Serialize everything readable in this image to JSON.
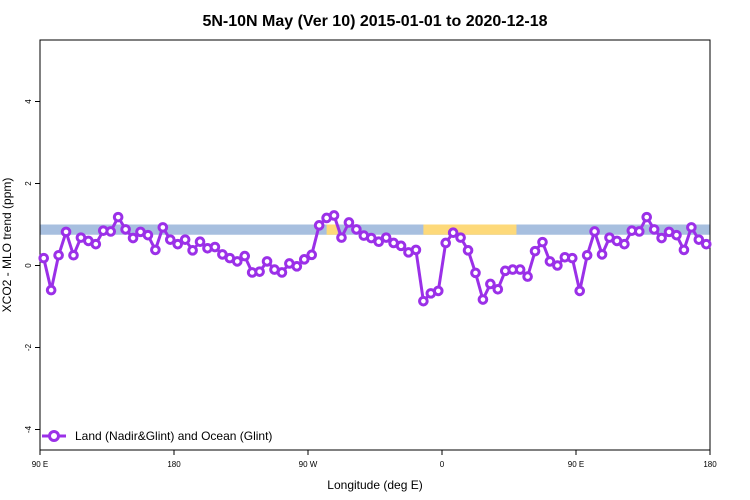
{
  "chart_data": {
    "type": "line",
    "title": "5N-10N May (Ver 10)   2015-01-01 to 2020-12-18",
    "xlabel": "Longitude (deg E)",
    "ylabel": "XCO2 - MLO trend (ppm)",
    "xlim": [
      0,
      360
    ],
    "ylim": [
      -4.5,
      5.5
    ],
    "x_ticks": [
      {
        "value": 0,
        "label": "90 E"
      },
      {
        "value": 72,
        "label": "180"
      },
      {
        "value": 144,
        "label": "90 W"
      },
      {
        "value": 216,
        "label": "0"
      },
      {
        "value": 288,
        "label": "90 E"
      },
      {
        "value": 360,
        "label": "180"
      }
    ],
    "y_ticks": [
      {
        "value": -4,
        "label": "-4"
      },
      {
        "value": -2,
        "label": "-2"
      },
      {
        "value": 0,
        "label": "0"
      },
      {
        "value": 2,
        "label": "2"
      },
      {
        "value": 4,
        "label": "4"
      }
    ],
    "land_mask_band": {
      "y_range": [
        0.75,
        1.0
      ],
      "ocean_color": "#a7bfdf",
      "land_color": "#fdd97a",
      "land_segments": [
        [
          154,
          160
        ],
        [
          206,
          256
        ]
      ]
    },
    "series": [
      {
        "name": "Land (Nadir&Glint) and Ocean (Glint)",
        "color": "#9b30e8",
        "x": [
          2,
          6,
          10,
          14,
          18,
          22,
          26,
          30,
          34,
          38,
          42,
          46,
          50,
          54,
          58,
          62,
          66,
          70,
          74,
          78,
          82,
          86,
          90,
          94,
          98,
          102,
          106,
          110,
          114,
          118,
          122,
          126,
          130,
          134,
          138,
          142,
          146,
          150,
          154,
          158,
          162,
          166,
          170,
          174,
          178,
          182,
          186,
          190,
          194,
          198,
          202,
          206,
          210,
          214,
          218,
          222,
          226,
          230,
          234,
          238,
          242,
          246,
          250,
          254,
          258,
          262,
          266,
          270,
          274,
          278,
          282,
          286,
          290,
          294,
          298,
          302,
          306,
          310,
          314,
          318,
          322,
          326,
          330,
          334,
          338,
          342,
          346,
          350,
          354,
          358
        ],
        "y": [
          0.18,
          -0.6,
          0.25,
          0.82,
          0.25,
          0.68,
          0.6,
          0.52,
          0.85,
          0.83,
          1.18,
          0.88,
          0.67,
          0.82,
          0.74,
          0.38,
          0.93,
          0.63,
          0.52,
          0.63,
          0.37,
          0.58,
          0.42,
          0.45,
          0.27,
          0.18,
          0.1,
          0.23,
          -0.17,
          -0.15,
          0.1,
          -0.1,
          -0.17,
          0.05,
          -0.02,
          0.15,
          0.26,
          0.98,
          1.16,
          1.22,
          0.68,
          1.05,
          0.88,
          0.73,
          0.67,
          0.58,
          0.68,
          0.55,
          0.48,
          0.32,
          0.38,
          -0.87,
          -0.68,
          -0.62,
          0.55,
          0.8,
          0.68,
          0.37,
          -0.18,
          -0.83,
          -0.45,
          -0.58,
          -0.13,
          -0.1,
          -0.1,
          -0.27,
          0.35,
          0.57,
          0.1,
          0.0,
          0.2,
          0.18,
          -0.62,
          0.25,
          0.83,
          0.27,
          0.68,
          0.6,
          0.52,
          0.85,
          0.83,
          1.18,
          0.88,
          0.67,
          0.82,
          0.74,
          0.38,
          0.93,
          0.63,
          0.52
        ]
      }
    ],
    "legend": {
      "position": "bottom-left",
      "label": "Land (Nadir&Glint) and Ocean (Glint)"
    },
    "grid": false
  }
}
